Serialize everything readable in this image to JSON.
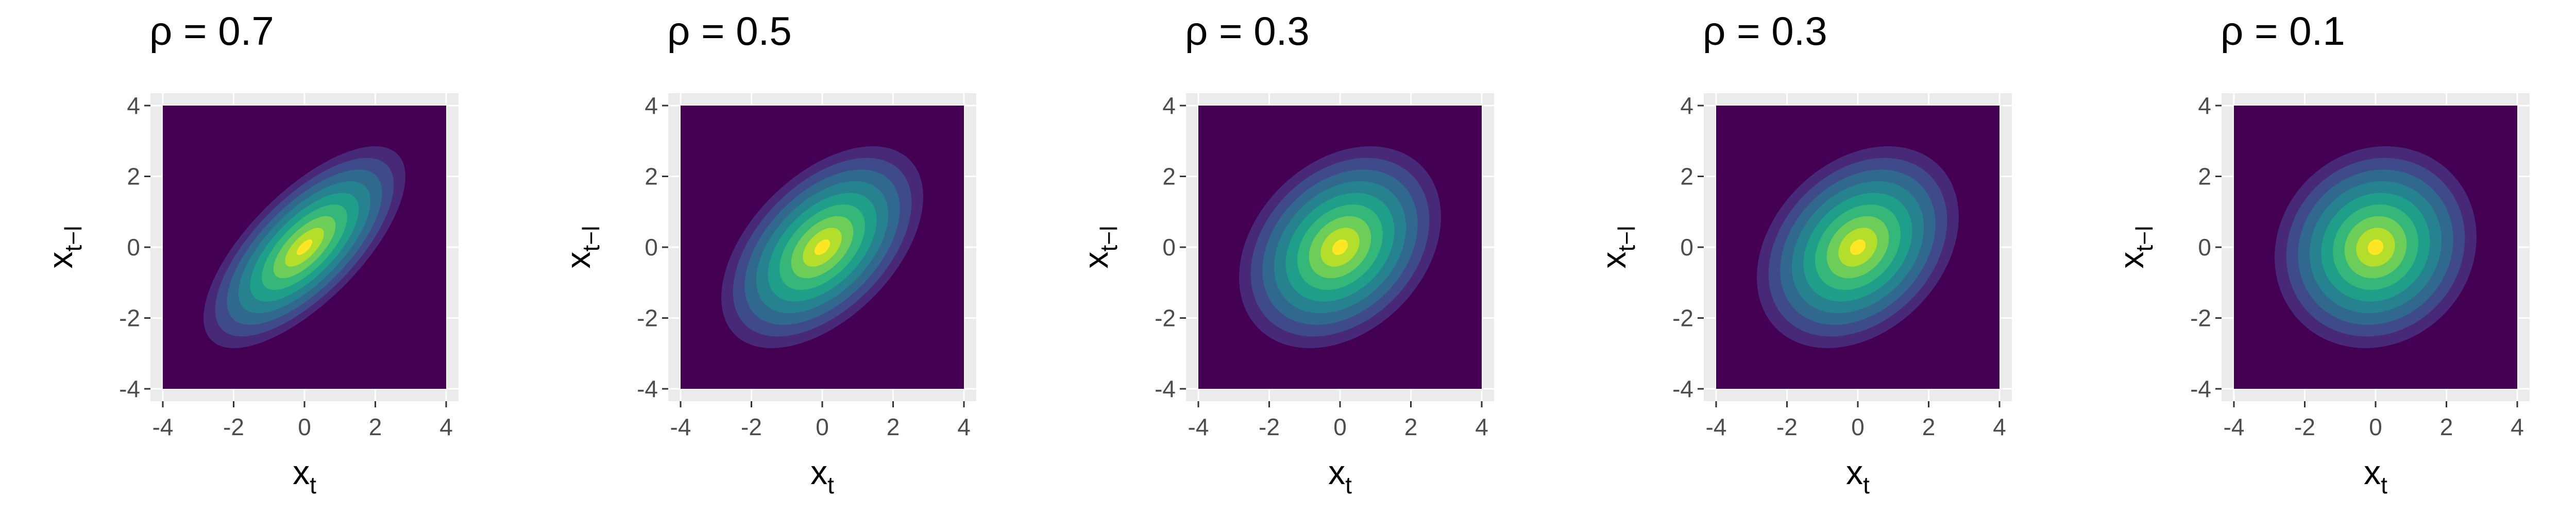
{
  "chart_data": [
    {
      "type": "heatmap",
      "title": "ρ = 0.7",
      "rho": 0.7,
      "xlabel": "x",
      "xlabel_sub": "t",
      "ylabel": "x",
      "ylabel_sub": "t−l",
      "xlim": [
        -4,
        4
      ],
      "ylim": [
        -4,
        4
      ],
      "x_ticks": [
        "-4",
        "-2",
        "0",
        "2",
        "4"
      ],
      "y_ticks": [
        "-4",
        "-2",
        "0",
        "2",
        "4"
      ],
      "grid": true,
      "colormap": [
        "#440154",
        "#482878",
        "#3E4A89",
        "#31688E",
        "#26828E",
        "#1F9E89",
        "#35B779",
        "#6DCD59",
        "#B4DE2C",
        "#FDE725"
      ]
    },
    {
      "type": "heatmap",
      "title": "ρ = 0.5",
      "rho": 0.5,
      "xlabel": "x",
      "xlabel_sub": "t",
      "ylabel": "x",
      "ylabel_sub": "t−l",
      "xlim": [
        -4,
        4
      ],
      "ylim": [
        -4,
        4
      ],
      "x_ticks": [
        "-4",
        "-2",
        "0",
        "2",
        "4"
      ],
      "y_ticks": [
        "-4",
        "-2",
        "0",
        "2",
        "4"
      ],
      "grid": true,
      "colormap": [
        "#440154",
        "#482878",
        "#3E4A89",
        "#31688E",
        "#26828E",
        "#1F9E89",
        "#35B779",
        "#6DCD59",
        "#B4DE2C",
        "#FDE725"
      ]
    },
    {
      "type": "heatmap",
      "title": "ρ = 0.3",
      "rho": 0.3,
      "xlabel": "x",
      "xlabel_sub": "t",
      "ylabel": "x",
      "ylabel_sub": "t−l",
      "xlim": [
        -4,
        4
      ],
      "ylim": [
        -4,
        4
      ],
      "x_ticks": [
        "-4",
        "-2",
        "0",
        "2",
        "4"
      ],
      "y_ticks": [
        "-4",
        "-2",
        "0",
        "2",
        "4"
      ],
      "grid": true,
      "colormap": [
        "#440154",
        "#482878",
        "#3E4A89",
        "#31688E",
        "#26828E",
        "#1F9E89",
        "#35B779",
        "#6DCD59",
        "#B4DE2C",
        "#FDE725"
      ]
    },
    {
      "type": "heatmap",
      "title": "ρ = 0.3",
      "rho": 0.3,
      "xlabel": "x",
      "xlabel_sub": "t",
      "ylabel": "x",
      "ylabel_sub": "t−l",
      "xlim": [
        -4,
        4
      ],
      "ylim": [
        -4,
        4
      ],
      "x_ticks": [
        "-4",
        "-2",
        "0",
        "2",
        "4"
      ],
      "y_ticks": [
        "-4",
        "-2",
        "0",
        "2",
        "4"
      ],
      "grid": true,
      "colormap": [
        "#440154",
        "#482878",
        "#3E4A89",
        "#31688E",
        "#26828E",
        "#1F9E89",
        "#35B779",
        "#6DCD59",
        "#B4DE2C",
        "#FDE725"
      ]
    },
    {
      "type": "heatmap",
      "title": "ρ = 0.1",
      "rho": 0.1,
      "xlabel": "x",
      "xlabel_sub": "t",
      "ylabel": "x",
      "ylabel_sub": "t−l",
      "xlim": [
        -4,
        4
      ],
      "ylim": [
        -4,
        4
      ],
      "x_ticks": [
        "-4",
        "-2",
        "0",
        "2",
        "4"
      ],
      "y_ticks": [
        "-4",
        "-2",
        "0",
        "2",
        "4"
      ],
      "grid": true,
      "colormap": [
        "#440154",
        "#482878",
        "#3E4A89",
        "#31688E",
        "#26828E",
        "#1F9E89",
        "#35B779",
        "#6DCD59",
        "#B4DE2C",
        "#FDE725"
      ]
    }
  ]
}
